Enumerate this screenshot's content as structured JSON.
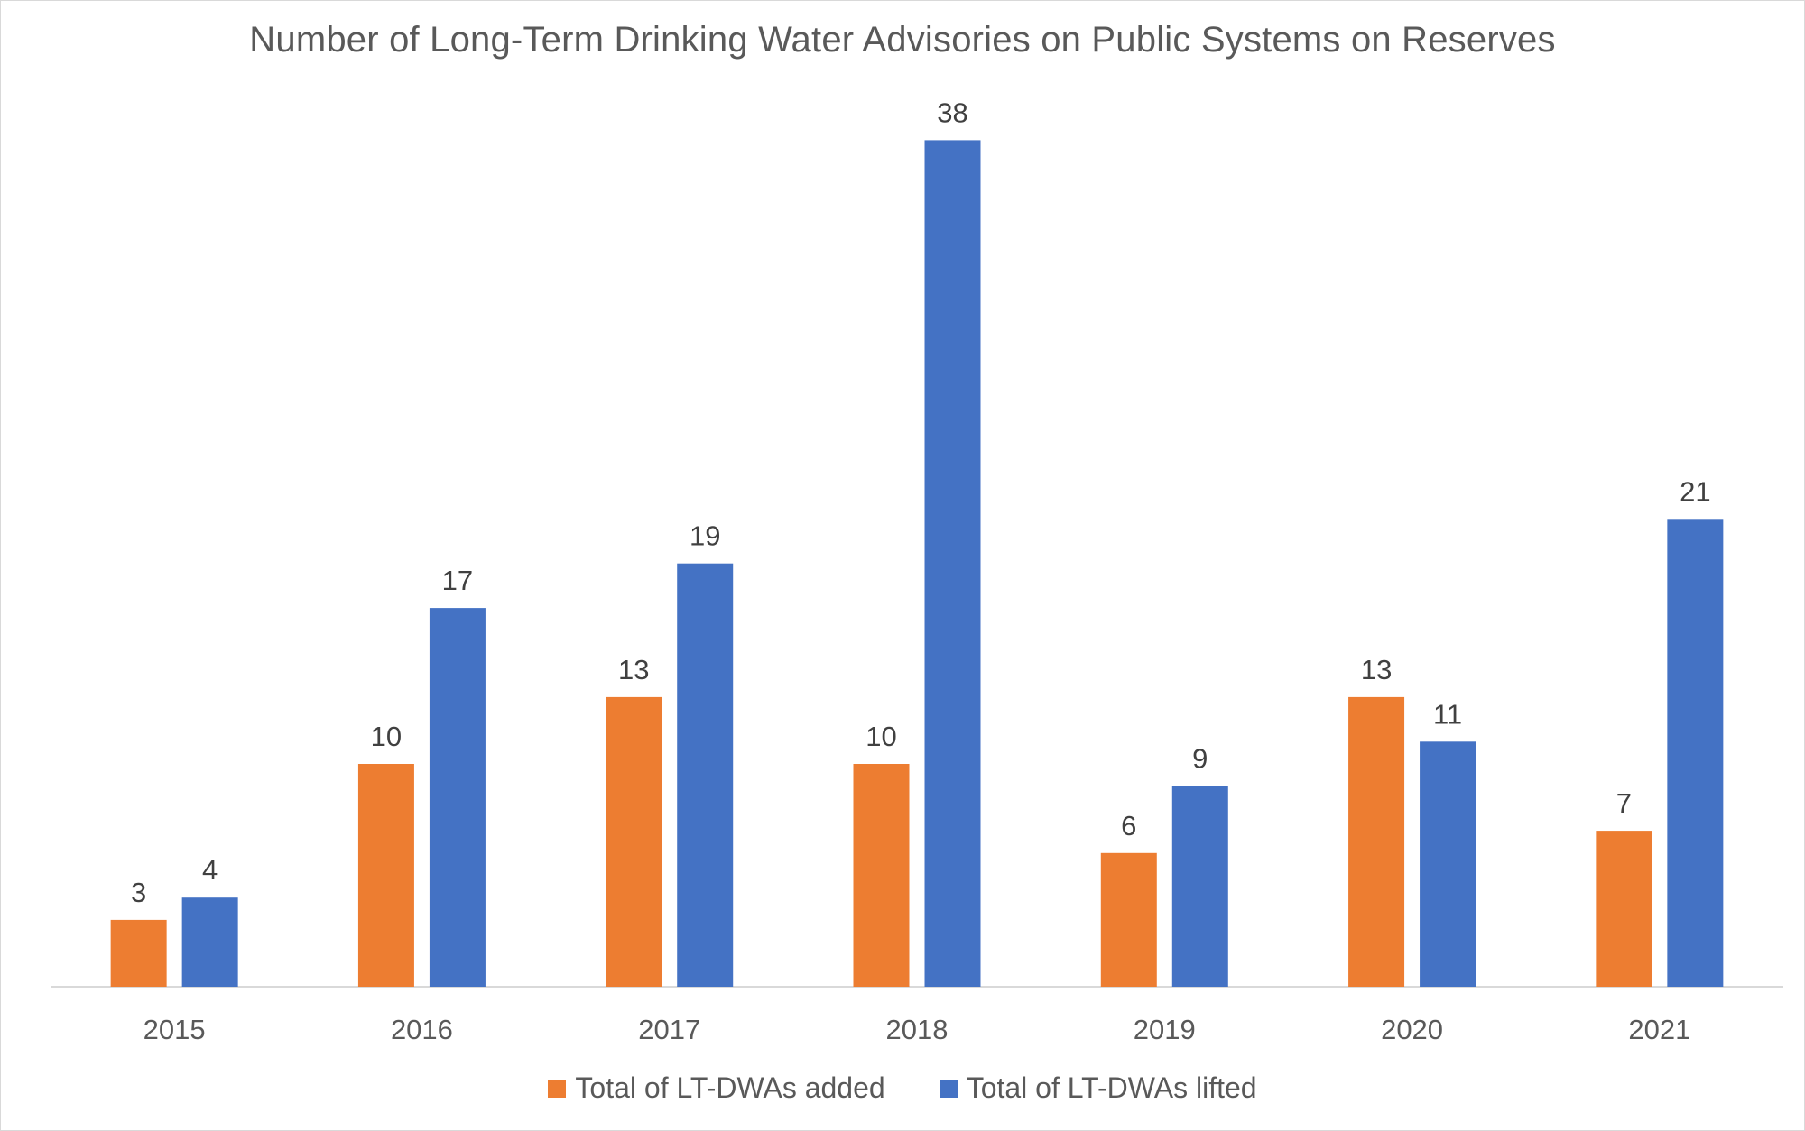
{
  "chart_data": {
    "type": "bar",
    "title": "Number of Long-Term Drinking Water Advisories on Public Systems on Reserves",
    "categories": [
      "2015",
      "2016",
      "2017",
      "2018",
      "2019",
      "2020",
      "2021"
    ],
    "series": [
      {
        "name": "Total of LT-DWAs added",
        "color": "#ED7D31",
        "values": [
          3,
          10,
          13,
          10,
          6,
          13,
          7
        ]
      },
      {
        "name": "Total of LT-DWAs lifted",
        "color": "#4472C4",
        "values": [
          4,
          17,
          19,
          38,
          9,
          11,
          21
        ]
      }
    ],
    "xlabel": "",
    "ylabel": "",
    "ylim": [
      0,
      40
    ],
    "y_axis_visible": false,
    "grid": false,
    "data_labels": true,
    "legend_position": "bottom"
  }
}
